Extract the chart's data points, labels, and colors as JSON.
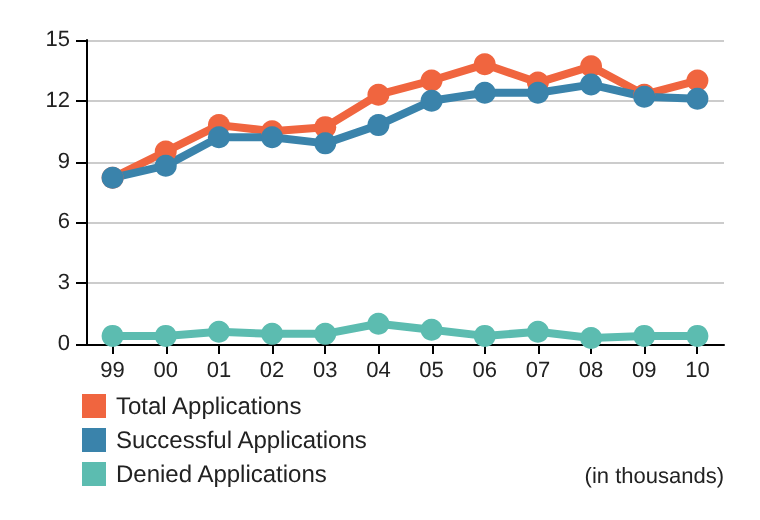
{
  "chart_data": {
    "type": "line",
    "categories": [
      "99",
      "00",
      "01",
      "02",
      "03",
      "04",
      "05",
      "06",
      "07",
      "08",
      "09",
      "10"
    ],
    "series": [
      {
        "name": "Total Applications",
        "color": "#f0653f",
        "values": [
          8.2,
          9.5,
          10.8,
          10.5,
          10.7,
          12.3,
          13.0,
          13.8,
          12.9,
          13.7,
          12.3,
          13.0
        ]
      },
      {
        "name": "Successful Applications",
        "color": "#3a83ab",
        "values": [
          8.2,
          8.8,
          10.2,
          10.2,
          9.9,
          10.8,
          12.0,
          12.4,
          12.4,
          12.8,
          12.2,
          12.1
        ]
      },
      {
        "name": "Denied Applications",
        "color": "#5cbcb0",
        "values": [
          0.4,
          0.4,
          0.6,
          0.5,
          0.5,
          1.0,
          0.7,
          0.4,
          0.6,
          0.3,
          0.4,
          0.4
        ]
      }
    ],
    "ylim": [
      0,
      15
    ],
    "yticks": [
      0,
      3,
      6,
      9,
      12,
      15
    ],
    "grid": "y",
    "legend": "bottom left",
    "marker": "circle",
    "line_style": "solid",
    "annotations": [
      "(in thousands)"
    ]
  }
}
